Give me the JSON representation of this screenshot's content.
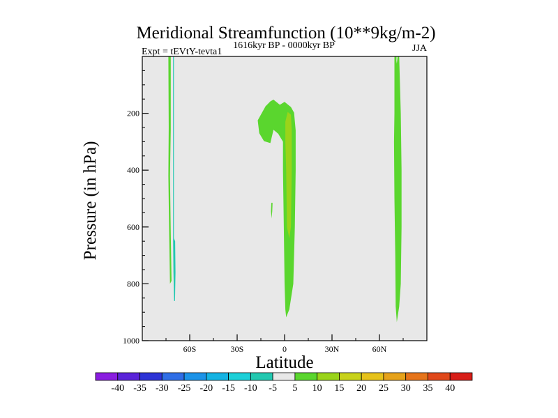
{
  "chart_data": {
    "type": "heatmap",
    "title": "Meridional Streamfunction (10**9kg/m-2)",
    "subtitle_left": "Expt = tEVtY-tevta1",
    "subtitle_center": "1616kyr BP - 0000kyr BP",
    "subtitle_right": "JJA",
    "xlabel": "Latitude",
    "ylabel": "Pressure (in hPa)",
    "xlim": [
      -90,
      90
    ],
    "ylim": [
      1000,
      0
    ],
    "x_ticks": [
      {
        "value": -60,
        "label": "60S"
      },
      {
        "value": -30,
        "label": "30S"
      },
      {
        "value": 0,
        "label": "0"
      },
      {
        "value": 30,
        "label": "30N"
      },
      {
        "value": 60,
        "label": "60N"
      }
    ],
    "y_ticks": [
      {
        "value": 200,
        "label": "200"
      },
      {
        "value": 400,
        "label": "400"
      },
      {
        "value": 600,
        "label": "600"
      },
      {
        "value": 800,
        "label": "800"
      },
      {
        "value": 1000,
        "label": "1000"
      }
    ],
    "plot_background": "#e8e8e8",
    "regions": [
      {
        "name": "sh-high-lat-band",
        "level": "5 to 10",
        "color": "#5ad62e",
        "points": [
          [
            -73.5,
            0
          ],
          [
            -72,
            0
          ],
          [
            -72,
            260
          ],
          [
            -72.5,
            420
          ],
          [
            -72,
            620
          ],
          [
            -71.5,
            790
          ],
          [
            -72.5,
            800
          ],
          [
            -73,
            620
          ],
          [
            -73.5,
            420
          ],
          [
            -73.3,
            250
          ]
        ]
      },
      {
        "name": "sh-high-lat-negative-sliver",
        "level": "-10 to -5",
        "color": "#22c8b0",
        "points": [
          [
            -70.5,
            0
          ],
          [
            -70,
            0
          ],
          [
            -70,
            640
          ],
          [
            -69.2,
            650
          ],
          [
            -69,
            760
          ],
          [
            -69.3,
            860
          ],
          [
            -69.9,
            860
          ],
          [
            -70.3,
            760
          ],
          [
            -70.5,
            640
          ]
        ]
      },
      {
        "name": "sh-small-blob",
        "level": "5 to 10",
        "color": "#5ad62e",
        "points": [
          [
            -8.4,
            515
          ],
          [
            -7.6,
            515
          ],
          [
            -7.8,
            545
          ],
          [
            -8.2,
            570
          ],
          [
            -8.6,
            545
          ]
        ]
      },
      {
        "name": "equatorial-cell",
        "level": "5 to 10",
        "color": "#5ad62e",
        "points": [
          [
            -17,
            225
          ],
          [
            -12,
            175
          ],
          [
            -9,
            158
          ],
          [
            -7,
            152
          ],
          [
            -3,
            170
          ],
          [
            0,
            160
          ],
          [
            4,
            178
          ],
          [
            6,
            198
          ],
          [
            7,
            260
          ],
          [
            7,
            400
          ],
          [
            6.5,
            600
          ],
          [
            5.5,
            800
          ],
          [
            3,
            890
          ],
          [
            1,
            918
          ],
          [
            0.5,
            890
          ],
          [
            0,
            800
          ],
          [
            -0.5,
            600
          ],
          [
            -1,
            400
          ],
          [
            -1,
            300
          ],
          [
            -4,
            272
          ],
          [
            -7,
            258
          ],
          [
            -9,
            305
          ],
          [
            -13,
            298
          ],
          [
            -16,
            270
          ]
        ]
      },
      {
        "name": "equatorial-cell-core",
        "level": "10 to 15",
        "color": "#9ad41a",
        "points": [
          [
            0.5,
            230
          ],
          [
            2,
            195
          ],
          [
            4,
            205
          ],
          [
            4.5,
            260
          ],
          [
            4.5,
            400
          ],
          [
            4,
            600
          ],
          [
            3,
            640
          ],
          [
            1.5,
            600
          ],
          [
            1,
            400
          ],
          [
            0.5,
            300
          ]
        ]
      },
      {
        "name": "nh-high-lat-band",
        "level": "5 to 10",
        "color": "#5ad62e",
        "points": [
          [
            69.5,
            0
          ],
          [
            72.5,
            0
          ],
          [
            73.5,
            200
          ],
          [
            74,
            400
          ],
          [
            74,
            600
          ],
          [
            73.5,
            800
          ],
          [
            72.5,
            880
          ],
          [
            71,
            935
          ],
          [
            70.3,
            880
          ],
          [
            70,
            700
          ],
          [
            69.5,
            500
          ],
          [
            69.2,
            300
          ],
          [
            69.5,
            200
          ]
        ]
      },
      {
        "name": "nh-high-lat-inner",
        "level": "-5 to 5",
        "color": "#e8e8e8",
        "points": [
          [
            70.8,
            0
          ],
          [
            71.5,
            0
          ],
          [
            71,
            25
          ],
          [
            70.7,
            15
          ]
        ]
      }
    ],
    "colorbar": {
      "labels": [
        "-40",
        "-35",
        "-30",
        "-25",
        "-20",
        "-15",
        "-10",
        "-5",
        "5",
        "10",
        "15",
        "20",
        "25",
        "30",
        "35",
        "40"
      ],
      "colors": [
        "#8a1de0",
        "#5a23d9",
        "#2d33d6",
        "#2f6ee6",
        "#1c93e8",
        "#14b3e3",
        "#1cd0d8",
        "#22c8b0",
        "#e8e8e8",
        "#5ad62e",
        "#9ad41a",
        "#c8d21a",
        "#e6c21a",
        "#e6a21a",
        "#e6741a",
        "#e0481a",
        "#d81e18"
      ]
    }
  }
}
